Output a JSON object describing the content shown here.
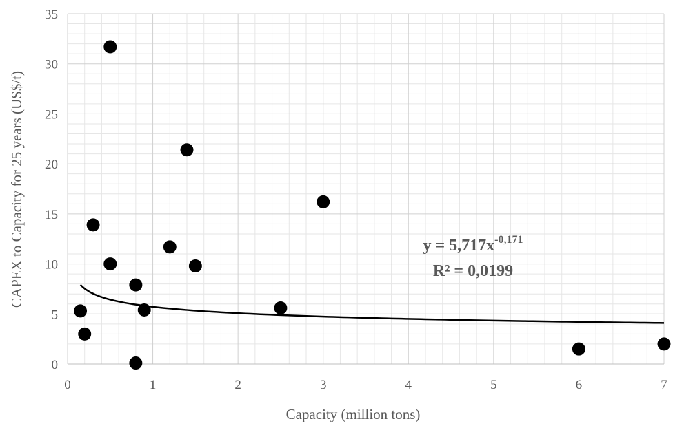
{
  "chart_data": {
    "type": "scatter",
    "xlabel": "Capacity (million tons)",
    "ylabel": "CAPEX to Capacity for 25 years (US$/t)",
    "xlim": [
      0,
      7
    ],
    "ylim": [
      0,
      35
    ],
    "x_ticks": [
      "0",
      "1",
      "2",
      "3",
      "4",
      "5",
      "6",
      "7"
    ],
    "y_ticks": [
      "0",
      "5",
      "10",
      "15",
      "20",
      "25",
      "30",
      "35"
    ],
    "grid": true,
    "points": [
      {
        "x": 0.5,
        "y": 31.7
      },
      {
        "x": 1.4,
        "y": 21.4
      },
      {
        "x": 3.0,
        "y": 16.2
      },
      {
        "x": 0.3,
        "y": 13.9
      },
      {
        "x": 1.2,
        "y": 11.7
      },
      {
        "x": 0.5,
        "y": 10.0
      },
      {
        "x": 1.5,
        "y": 9.8
      },
      {
        "x": 0.8,
        "y": 7.9
      },
      {
        "x": 2.5,
        "y": 5.6
      },
      {
        "x": 0.9,
        "y": 5.4
      },
      {
        "x": 0.15,
        "y": 5.3
      },
      {
        "x": 0.2,
        "y": 3.0
      },
      {
        "x": 7.0,
        "y": 2.0
      },
      {
        "x": 6.0,
        "y": 1.5
      },
      {
        "x": 0.8,
        "y": 0.1
      }
    ],
    "trendline": {
      "type": "power",
      "coefficient": 5.717,
      "exponent": -0.171,
      "x_range": [
        0.15,
        7.0
      ]
    },
    "equation": {
      "base": "y = 5,717x",
      "exponent": "-0,171",
      "r2": "R² = 0,0199"
    }
  }
}
